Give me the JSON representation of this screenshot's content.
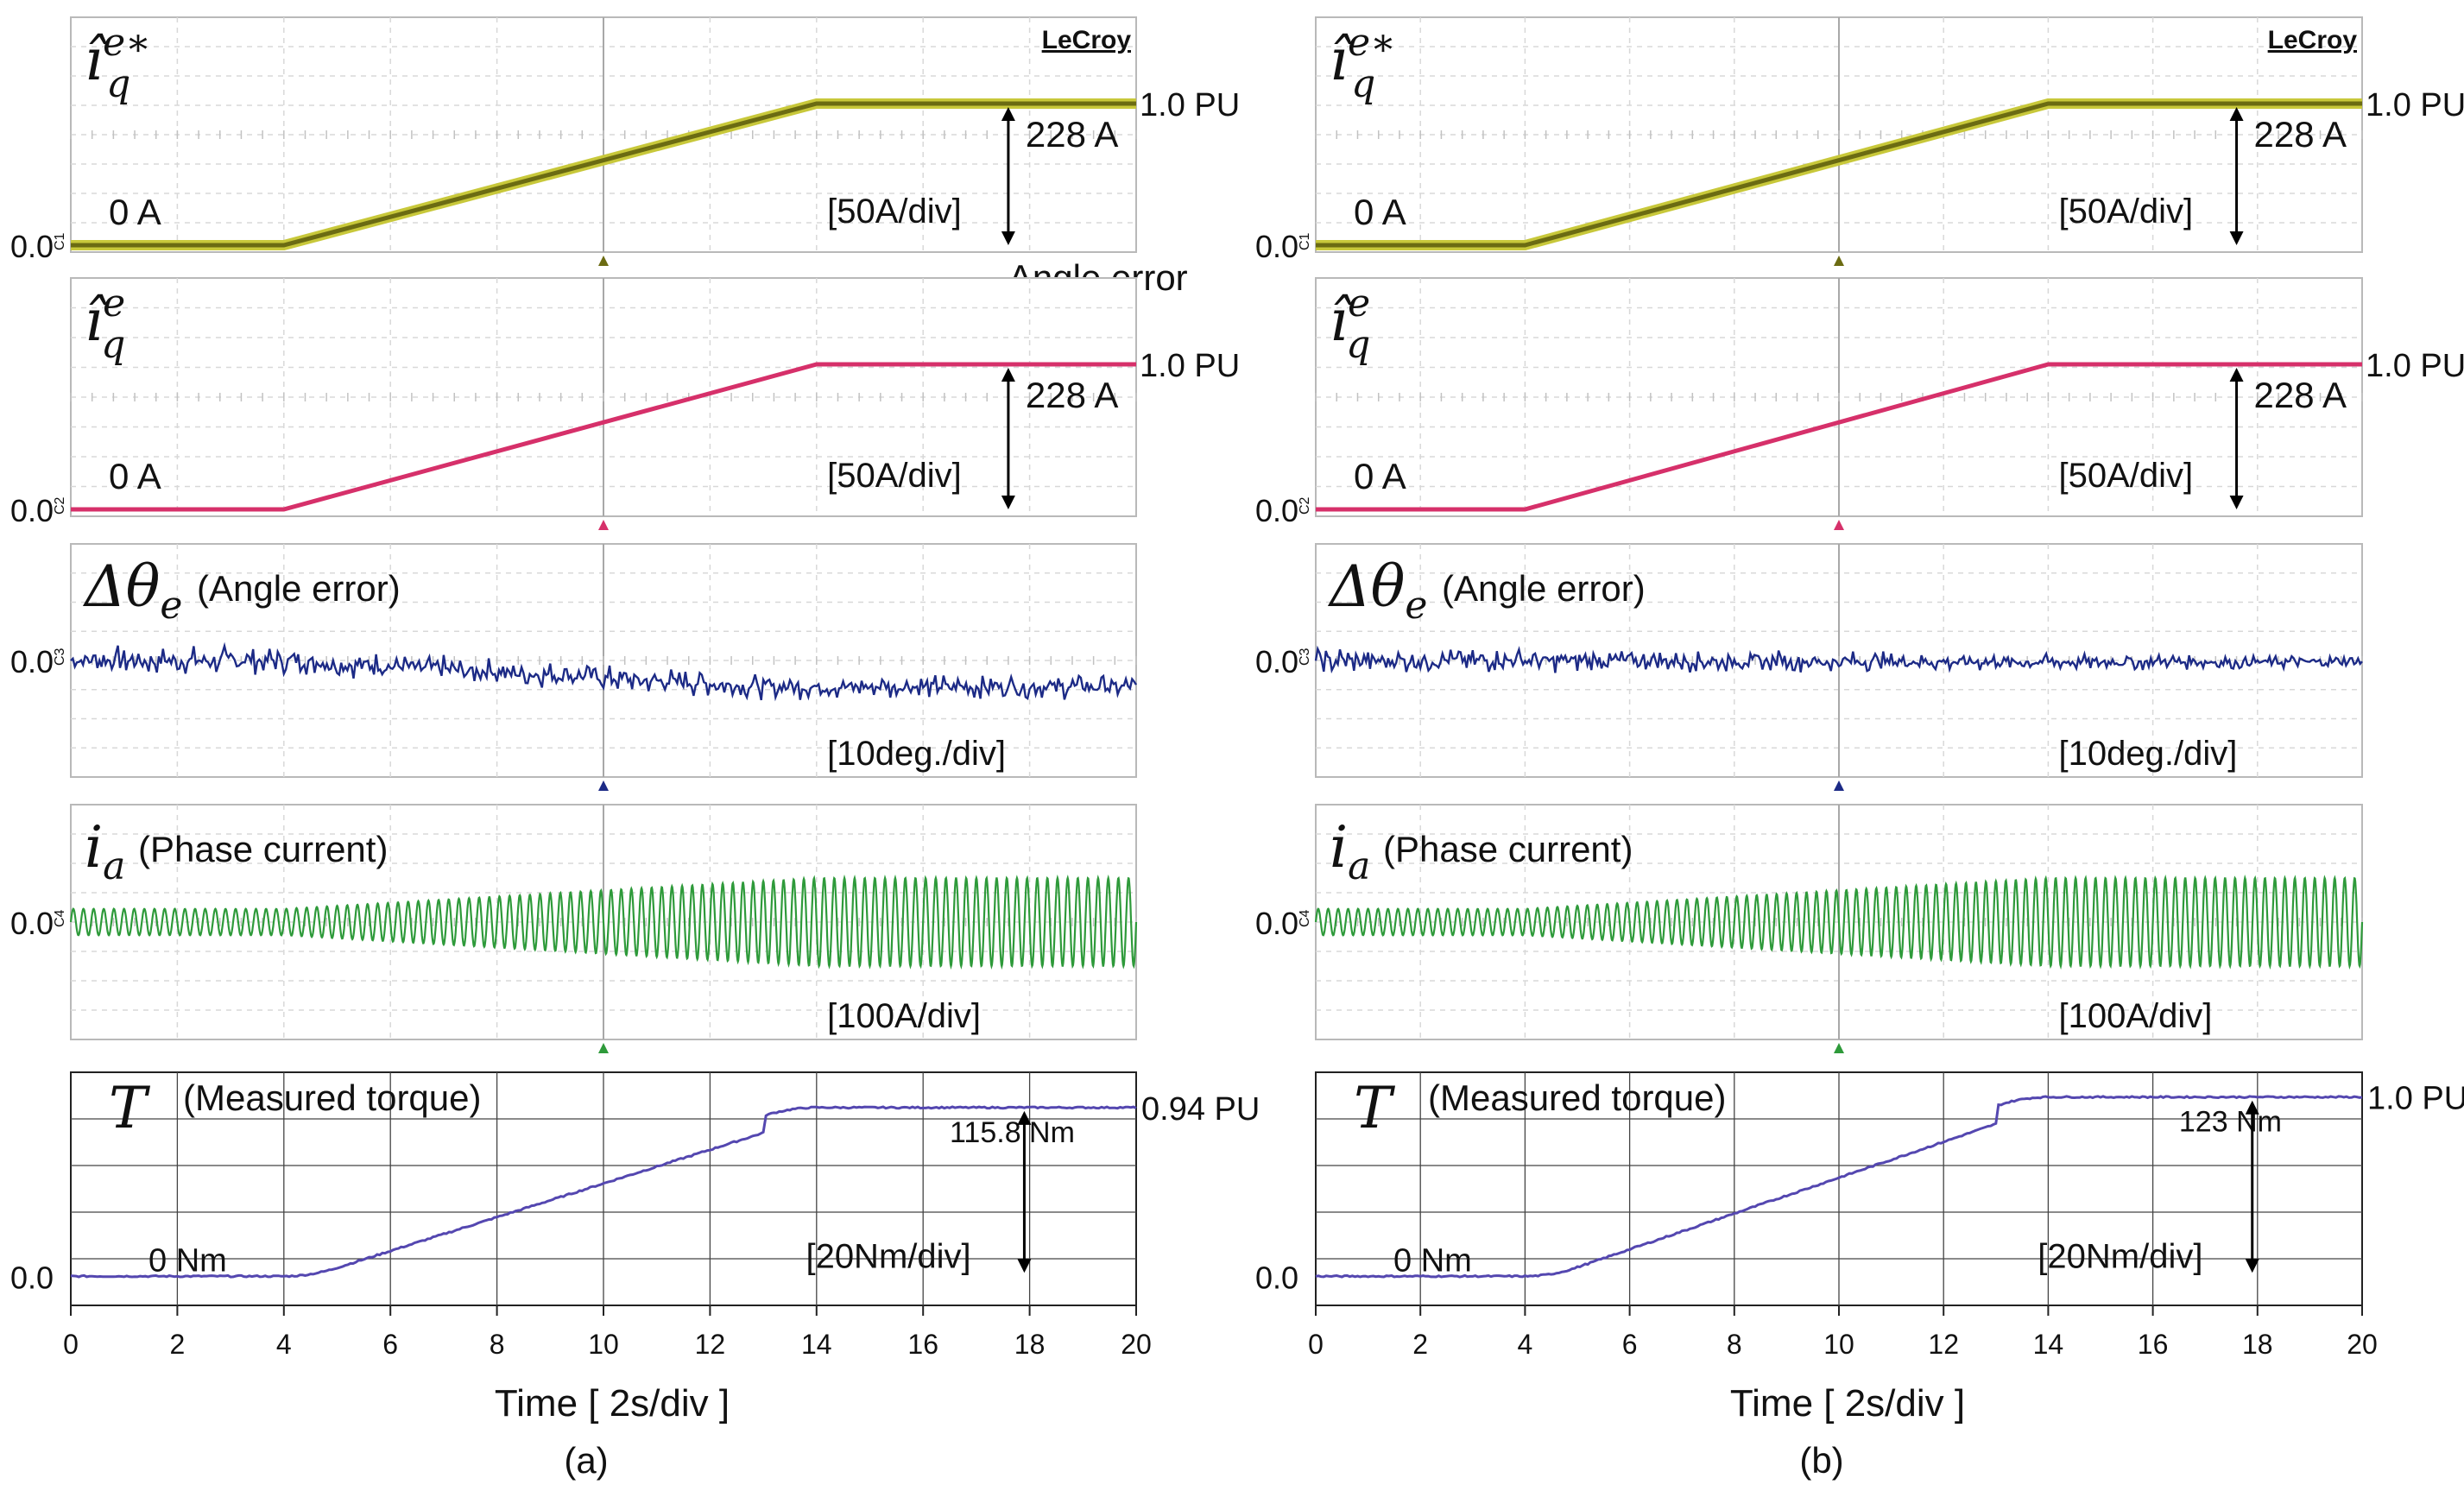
{
  "chart_data": [
    {
      "type": "line",
      "panel_label": "(a)",
      "time_axis": {
        "label": "Time [ 2s/div ]",
        "ticks": [
          0,
          2,
          4,
          6,
          8,
          10,
          12,
          14,
          16,
          18,
          20
        ],
        "range": [
          0,
          20
        ]
      },
      "brand": "LeCroy",
      "traces": [
        {
          "id": "ch1",
          "symbol": "î",
          "superscript": "e∗",
          "subscript": "q",
          "quantity_label": "",
          "channel": "C1",
          "color": "#6b6b12",
          "fill_color": "#c8c83a",
          "waveform": "ramp",
          "start_value": 0.0,
          "end_value": 1.0,
          "ramp_start_s": 4,
          "ramp_end_s": 14,
          "zero_label": "0.0",
          "start_text": "0 A",
          "level_text": "1.0 PU",
          "delta_text": "228 A",
          "scale_text": "[50A/div]",
          "extra_text": "Angle error"
        },
        {
          "id": "ch2",
          "symbol": "î",
          "superscript": "e",
          "subscript": "q",
          "quantity_label": "",
          "channel": "C2",
          "color": "#d6306a",
          "waveform": "ramp",
          "start_value": 0.0,
          "end_value": 1.0,
          "ramp_start_s": 4,
          "ramp_end_s": 14,
          "zero_label": "0.0",
          "start_text": "0 A",
          "level_text": "1.0 PU",
          "delta_text": "228 A",
          "scale_text": "[50A/div]"
        },
        {
          "id": "ch3",
          "symbol": "Δθ",
          "superscript": "",
          "subscript": "e",
          "quantity_label": "(Angle error)",
          "channel": "C3",
          "color": "#1c2a86",
          "waveform": "noise",
          "zero_label": "0.0",
          "scale_text": "[10deg./div]",
          "noise_start_amplitude_div": 0.55,
          "noise_end_amplitude_div": 0.45,
          "drift_end_div": -0.9
        },
        {
          "id": "ch4",
          "symbol": "i",
          "superscript": "",
          "subscript": "a",
          "quantity_label": "(Phase current)",
          "channel": "C4",
          "color": "#2e9a3a",
          "waveform": "sine",
          "zero_label": "0.0",
          "scale_text": "[100A/div]",
          "amplitude_start_div": 0.45,
          "amplitude_end_div": 1.5,
          "cycles": 105
        }
      ],
      "torque": {
        "symbol": "T",
        "quantity_label": "(Measured torque)",
        "color": "#5447b0",
        "zero_label": "0.0",
        "start_text": "0 Nm",
        "final_text": "115.8 Nm",
        "level_text": "0.94 PU",
        "scale_text": "[20Nm/div]",
        "start_value_nm": 0,
        "final_value_nm": 115.8,
        "ramp_start_s": 4,
        "ramp_end_s": 14,
        "ylim_nm": [
          -20,
          140
        ]
      }
    },
    {
      "type": "line",
      "panel_label": "(b)",
      "time_axis": {
        "label": "Time [ 2s/div ]",
        "ticks": [
          0,
          2,
          4,
          6,
          8,
          10,
          12,
          14,
          16,
          18,
          20
        ],
        "range": [
          0,
          20
        ]
      },
      "brand": "LeCroy",
      "traces": [
        {
          "id": "ch1",
          "symbol": "î",
          "superscript": "e∗",
          "subscript": "q",
          "quantity_label": "",
          "channel": "C1",
          "color": "#6b6b12",
          "fill_color": "#c8c83a",
          "waveform": "ramp",
          "start_value": 0.0,
          "end_value": 1.0,
          "ramp_start_s": 4,
          "ramp_end_s": 14,
          "zero_label": "0.0",
          "start_text": "0 A",
          "level_text": "1.0 PU",
          "delta_text": "228 A",
          "scale_text": "[50A/div]",
          "extra_text": ""
        },
        {
          "id": "ch2",
          "symbol": "î",
          "superscript": "e",
          "subscript": "q",
          "quantity_label": "",
          "channel": "C2",
          "color": "#d6306a",
          "waveform": "ramp",
          "start_value": 0.0,
          "end_value": 1.0,
          "ramp_start_s": 4,
          "ramp_end_s": 14,
          "zero_label": "0.0",
          "start_text": "0 A",
          "level_text": "1.0 PU",
          "delta_text": "228 A",
          "scale_text": "[50A/div]"
        },
        {
          "id": "ch3",
          "symbol": "Δθ",
          "superscript": "",
          "subscript": "e",
          "quantity_label": "(Angle error)",
          "channel": "C3",
          "color": "#1c2a86",
          "waveform": "noise",
          "zero_label": "0.0",
          "scale_text": "[10deg./div]",
          "noise_start_amplitude_div": 0.5,
          "noise_end_amplitude_div": 0.25,
          "drift_end_div": -0.05
        },
        {
          "id": "ch4",
          "symbol": "i",
          "superscript": "",
          "subscript": "a",
          "quantity_label": "(Phase current)",
          "channel": "C4",
          "color": "#2e9a3a",
          "waveform": "sine",
          "zero_label": "0.0",
          "scale_text": "[100A/div]",
          "amplitude_start_div": 0.45,
          "amplitude_end_div": 1.5,
          "cycles": 105
        }
      ],
      "torque": {
        "symbol": "T",
        "quantity_label": "(Measured torque)",
        "color": "#5447b0",
        "zero_label": "0.0",
        "start_text": "0 Nm",
        "final_text": "123 Nm",
        "level_text": "1.0 PU",
        "scale_text": "[20Nm/div]",
        "start_value_nm": 0,
        "final_value_nm": 123,
        "ramp_start_s": 4,
        "ramp_end_s": 14,
        "ylim_nm": [
          -20,
          140
        ]
      }
    }
  ]
}
